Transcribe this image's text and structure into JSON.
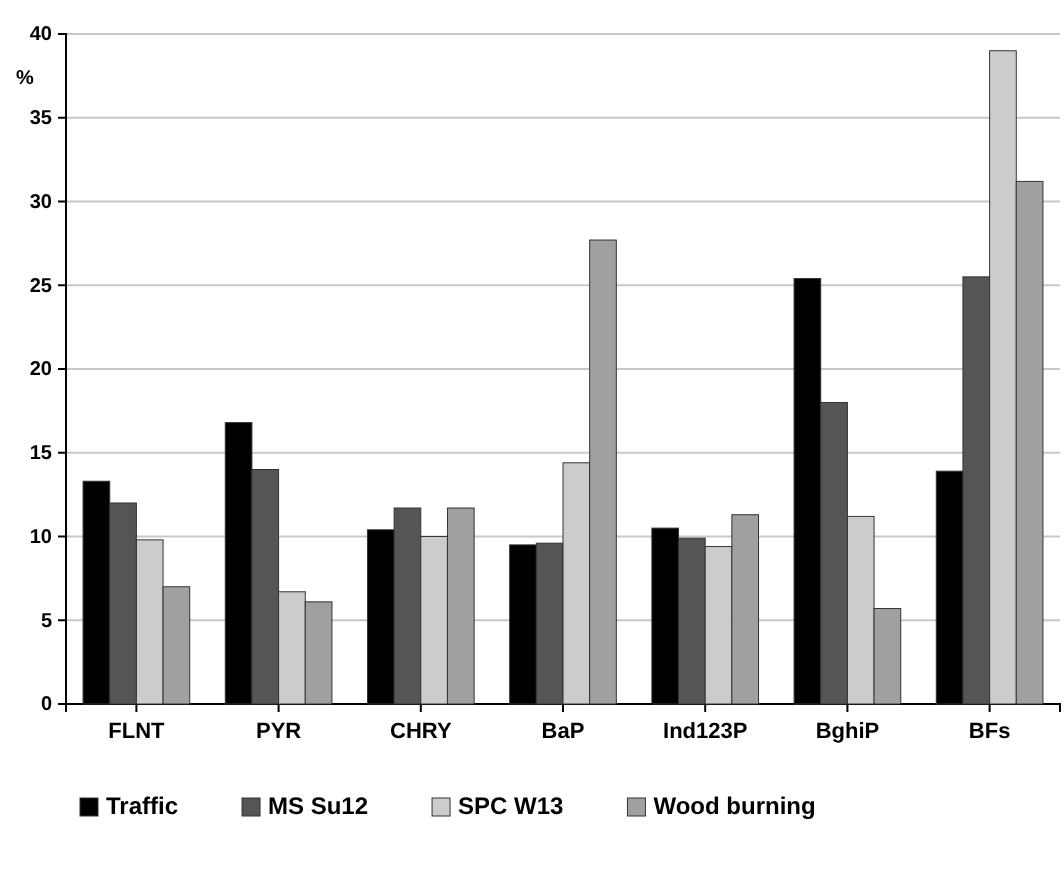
{
  "chart_data": {
    "type": "bar",
    "ylabel": "%",
    "categories": [
      "FLNT",
      "PYR",
      "CHRY",
      "BaP",
      "Ind123P",
      "BghiP",
      "BFs"
    ],
    "series": [
      {
        "name": "Traffic",
        "color": "#000000",
        "values": [
          13.3,
          16.8,
          10.4,
          9.5,
          10.5,
          25.4,
          13.9
        ]
      },
      {
        "name": "MS Su12",
        "color": "#555555",
        "values": [
          12.0,
          14.0,
          11.7,
          9.6,
          9.9,
          18.0,
          25.5
        ]
      },
      {
        "name": "SPC W13",
        "color": "#cccccc",
        "values": [
          9.8,
          6.7,
          10.0,
          14.4,
          9.4,
          11.2,
          39.0
        ]
      },
      {
        "name": "Wood burning",
        "color": "#a0a0a0",
        "values": [
          7.0,
          6.1,
          11.7,
          27.7,
          11.3,
          5.7,
          31.2
        ]
      }
    ],
    "ylim": [
      0,
      40
    ],
    "yticks": [
      0,
      5,
      10,
      15,
      20,
      25,
      30,
      35,
      40
    ],
    "grid": "y",
    "legend": "bottom"
  }
}
